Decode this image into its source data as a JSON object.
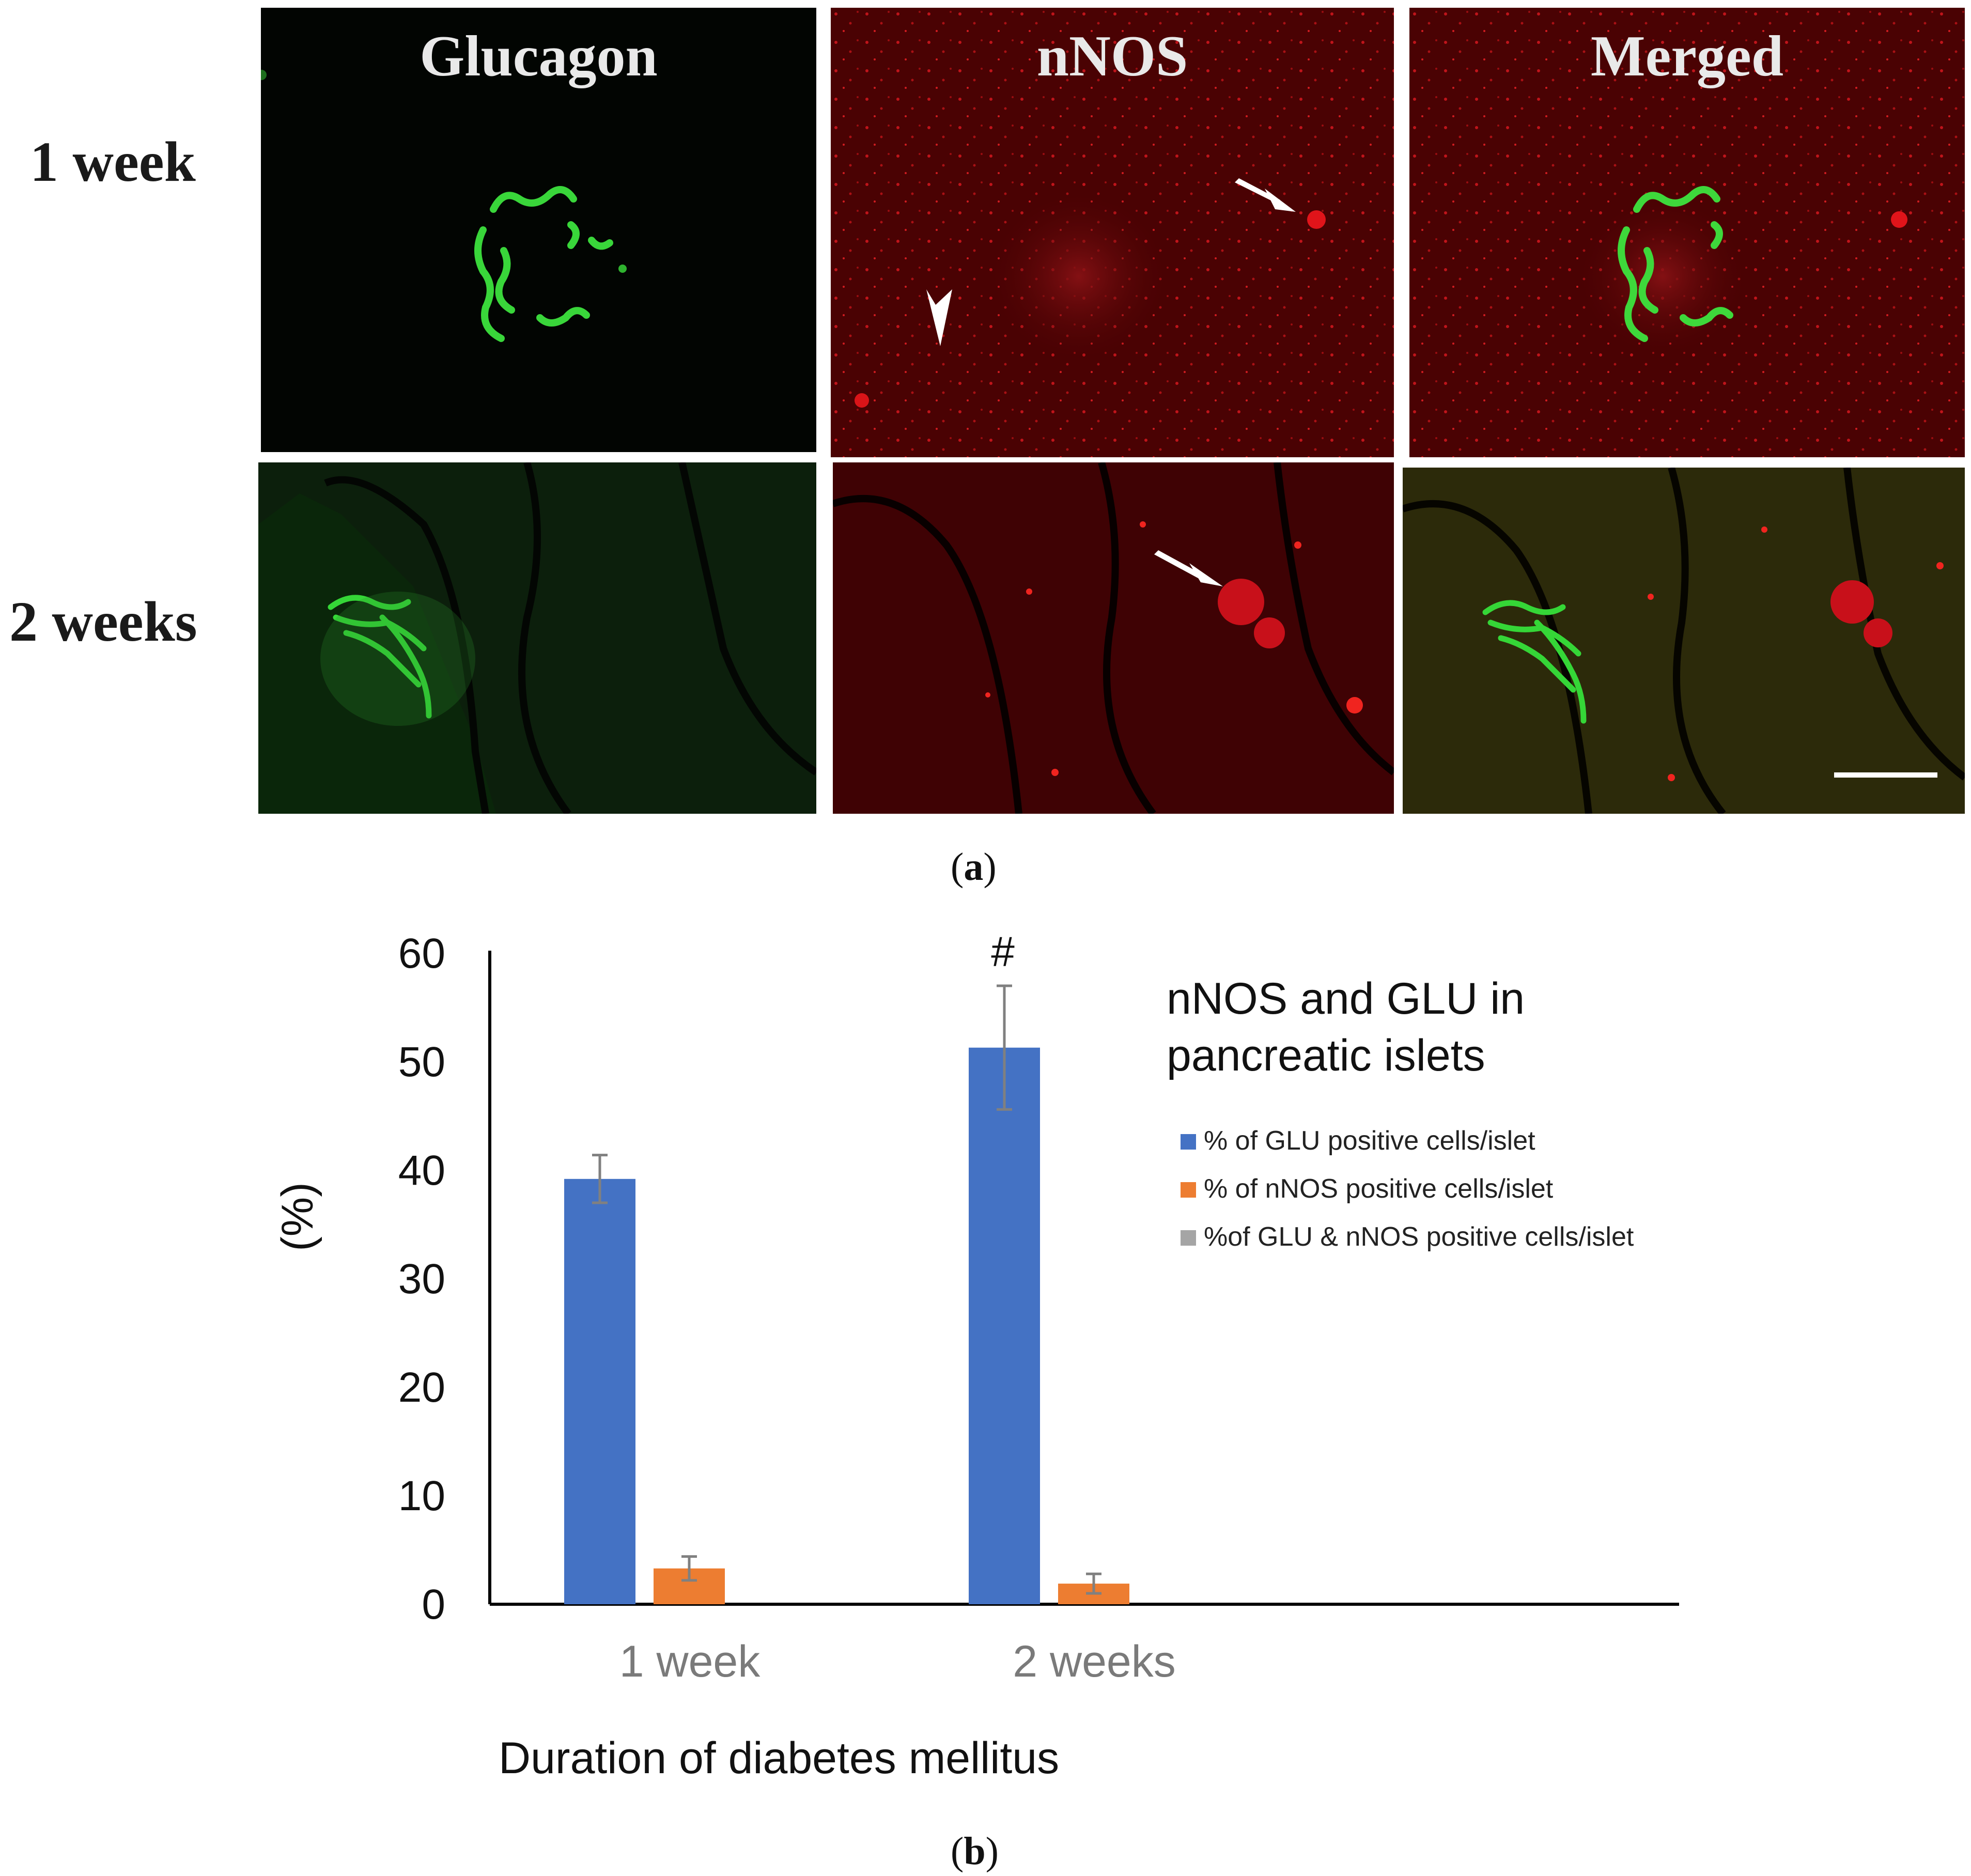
{
  "figure_a": {
    "label": "a",
    "columns": [
      "Glucagon",
      "nNOS",
      "Merged"
    ],
    "rows": [
      "1 week",
      "2 weeks"
    ]
  },
  "figure_b": {
    "label": "b"
  },
  "chart_data": {
    "type": "bar",
    "title": "nNOS and GLU in pancreatic islets",
    "title_lines": [
      "nNOS and GLU in",
      "pancreatic islets"
    ],
    "xlabel": "Duration of diabetes mellitus",
    "ylabel": "(%)",
    "categories": [
      "1 week",
      "2 weeks"
    ],
    "ylim": [
      0,
      60
    ],
    "yticks": [
      0,
      10,
      20,
      30,
      40,
      50,
      60
    ],
    "grid": false,
    "legend_position": "right",
    "series": [
      {
        "name": "% of GLU positive cells/islet",
        "values": [
          39.2,
          51.3
        ],
        "errors": [
          2.2,
          5.7
        ],
        "color": "#4472c4"
      },
      {
        "name": "% of nNOS positive cells/islet",
        "values": [
          3.3,
          1.9
        ],
        "errors": [
          1.1,
          0.9
        ],
        "color": "#ed7d31"
      },
      {
        "name": "%of GLU & nNOS positive cells/islet",
        "values": [
          0,
          0
        ],
        "errors": [
          0,
          0
        ],
        "color": "#a5a5a5"
      }
    ],
    "annotations": [
      {
        "category": "2 weeks",
        "series": 0,
        "text": "#"
      }
    ]
  }
}
